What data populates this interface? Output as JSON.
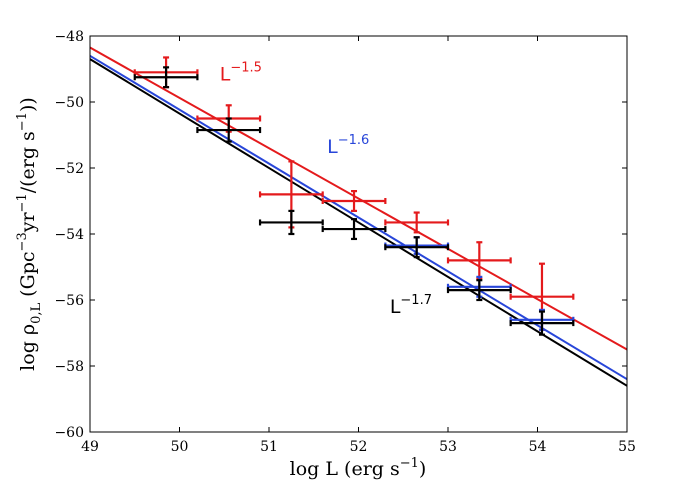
{
  "chart_data": {
    "type": "scatter",
    "title": "",
    "xlabel": "log L (erg s",
    "xlabel_sup": "−1",
    "xlabel_close": ")",
    "ylabel": {
      "prefix": "log ρ",
      "sub": "0,L",
      "body": " (Gpc",
      "sup1": "−3",
      "mid": "yr",
      "sup2": "−1",
      "mid2": "/(erg s",
      "sup3": "−1",
      "close": "))"
    },
    "xlim": [
      49,
      55
    ],
    "ylim": [
      -60,
      -48
    ],
    "xticks": [
      49,
      50,
      51,
      52,
      53,
      54,
      55
    ],
    "yticks": [
      -48,
      -50,
      -52,
      -54,
      -56,
      -58,
      -60
    ],
    "xtick_labels": [
      "49",
      "50",
      "51",
      "52",
      "53",
      "54",
      "55"
    ],
    "ytick_labels": [
      "−48",
      "−50",
      "−52",
      "−54",
      "−56",
      "−58",
      "−60"
    ],
    "series": [
      {
        "name": "red",
        "color": "#e41a1c",
        "points": [
          {
            "x": 49.85,
            "y": -49.1,
            "xerr": [
              0.35,
              0.35
            ],
            "yerr": [
              0.45,
              0.45
            ]
          },
          {
            "x": 50.55,
            "y": -50.5,
            "xerr": [
              0.35,
              0.35
            ],
            "yerr": [
              0.4,
              0.4
            ]
          },
          {
            "x": 51.25,
            "y": -52.8,
            "xerr": [
              0.35,
              0.35
            ],
            "yerr": [
              1.0,
              1.0
            ]
          },
          {
            "x": 51.95,
            "y": -53.0,
            "xerr": [
              0.35,
              0.35
            ],
            "yerr": [
              0.3,
              0.3
            ]
          },
          {
            "x": 52.65,
            "y": -53.65,
            "xerr": [
              0.35,
              0.35
            ],
            "yerr": [
              0.3,
              0.3
            ]
          },
          {
            "x": 53.35,
            "y": -54.8,
            "xerr": [
              0.35,
              0.35
            ],
            "yerr": [
              0.55,
              0.55
            ]
          },
          {
            "x": 54.05,
            "y": -55.9,
            "xerr": [
              0.35,
              0.35
            ],
            "yerr": [
              1.0,
              1.0
            ]
          }
        ],
        "fit": {
          "x": [
            49,
            55
          ],
          "y": [
            -48.35,
            -57.5
          ]
        }
      },
      {
        "name": "blue",
        "color": "#2846d9",
        "points": [
          {
            "x": 52.65,
            "y": -54.35,
            "xerr": [
              0.35,
              0.35
            ],
            "yerr": [
              0.25,
              0.25
            ]
          },
          {
            "x": 53.35,
            "y": -55.6,
            "xerr": [
              0.35,
              0.35
            ],
            "yerr": [
              0.3,
              0.3
            ]
          },
          {
            "x": 54.05,
            "y": -56.6,
            "xerr": [
              0.35,
              0.35
            ],
            "yerr": [
              0.3,
              0.3
            ]
          }
        ],
        "fit": {
          "x": [
            49,
            55
          ],
          "y": [
            -48.6,
            -58.4
          ]
        }
      },
      {
        "name": "black",
        "color": "#000000",
        "points": [
          {
            "x": 49.85,
            "y": -49.25,
            "xerr": [
              0.35,
              0.35
            ],
            "yerr": [
              0.3,
              0.3
            ]
          },
          {
            "x": 50.55,
            "y": -50.85,
            "xerr": [
              0.35,
              0.35
            ],
            "yerr": [
              0.35,
              0.35
            ]
          },
          {
            "x": 51.25,
            "y": -53.65,
            "xerr": [
              0.35,
              0.35
            ],
            "yerr": [
              0.35,
              0.35
            ]
          },
          {
            "x": 51.95,
            "y": -53.85,
            "xerr": [
              0.35,
              0.35
            ],
            "yerr": [
              0.3,
              0.3
            ]
          },
          {
            "x": 52.65,
            "y": -54.4,
            "xerr": [
              0.35,
              0.35
            ],
            "yerr": [
              0.3,
              0.3
            ]
          },
          {
            "x": 53.35,
            "y": -55.7,
            "xerr": [
              0.35,
              0.35
            ],
            "yerr": [
              0.3,
              0.3
            ]
          },
          {
            "x": 54.05,
            "y": -56.7,
            "xerr": [
              0.35,
              0.35
            ],
            "yerr": [
              0.35,
              0.35
            ]
          }
        ],
        "fit": {
          "x": [
            49,
            55
          ],
          "y": [
            -48.7,
            -58.6
          ]
        }
      }
    ],
    "annotations": [
      {
        "name": "red-slope-label",
        "base": "L",
        "sup": "−1.5",
        "color": "#e41a1c",
        "x": 50.45,
        "y": -49.35
      },
      {
        "name": "blue-slope-label",
        "base": "L",
        "sup": "−1.6",
        "color": "#2846d9",
        "x": 51.65,
        "y": -51.55
      },
      {
        "name": "black-slope-label",
        "base": "L",
        "sup": "−1.7",
        "color": "#000000",
        "x": 52.35,
        "y": -56.4
      }
    ]
  }
}
